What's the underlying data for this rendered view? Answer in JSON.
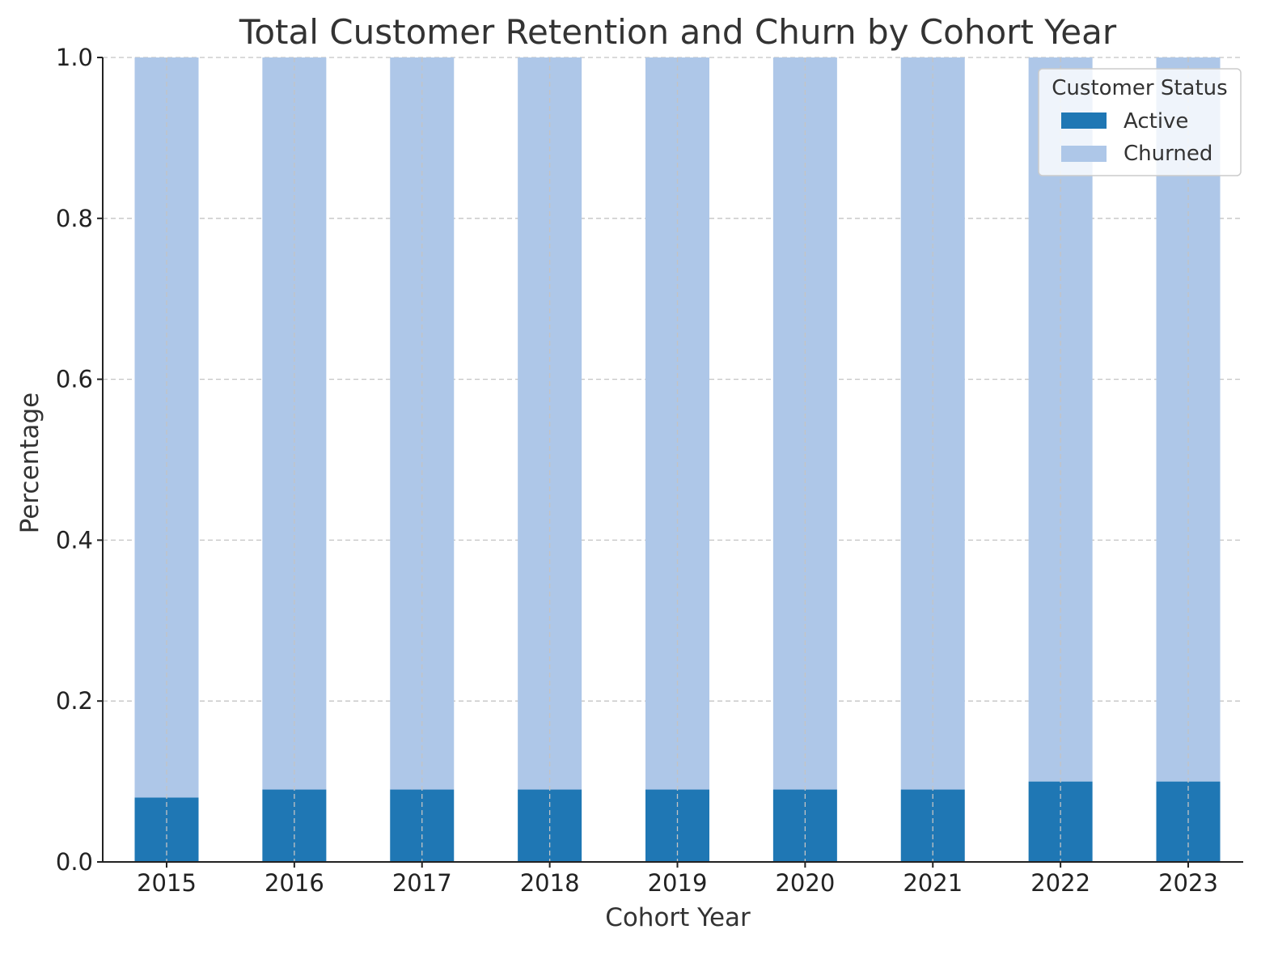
{
  "chart_data": {
    "type": "bar",
    "stacked": true,
    "title": "Total Customer Retention and Churn by Cohort Year",
    "xlabel": "Cohort Year",
    "ylabel": "Percentage",
    "categories": [
      "2015",
      "2016",
      "2017",
      "2018",
      "2019",
      "2020",
      "2021",
      "2022",
      "2023"
    ],
    "series": [
      {
        "name": "Active",
        "color": "#1f77b4",
        "values": [
          0.08,
          0.09,
          0.09,
          0.09,
          0.09,
          0.09,
          0.09,
          0.1,
          0.1
        ]
      },
      {
        "name": "Churned",
        "color": "#aec7e8",
        "values": [
          0.92,
          0.91,
          0.91,
          0.91,
          0.91,
          0.91,
          0.91,
          0.9,
          0.9
        ]
      }
    ],
    "ylim": [
      0,
      1.0
    ],
    "yticks": [
      "0.0",
      "0.2",
      "0.4",
      "0.6",
      "0.8",
      "1.0"
    ],
    "grid": true,
    "legend": {
      "title": "Customer Status",
      "position": "top-right"
    }
  }
}
